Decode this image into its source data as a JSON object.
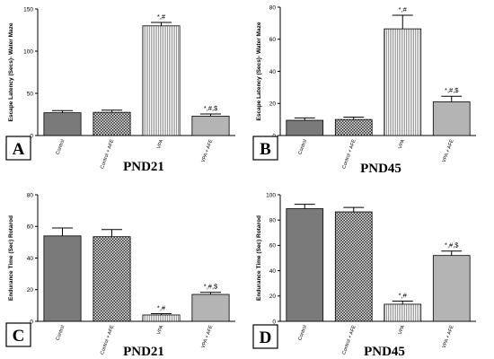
{
  "colors": {
    "control": "#7a7a7a",
    "control_afe": "checker-black-white",
    "vpa": "vertical-stripes-grey",
    "vpa_afe": "#b4b4b4"
  },
  "chart_data": [
    {
      "type": "bar",
      "panel_letter": "A",
      "title": "PND21",
      "xlabel": "",
      "ylabel": "Escape Latency (Secs)- Water Maze",
      "ylim": [
        0,
        150
      ],
      "yticks": [
        0,
        50,
        100,
        150
      ],
      "categories": [
        "Control",
        "Control + AFE",
        "VPA",
        "VPA + AFE"
      ],
      "values": [
        27,
        27.5,
        130,
        23
      ],
      "errors": [
        2.5,
        2.5,
        4,
        2.5
      ],
      "annotations": [
        "",
        "",
        "*,#",
        "*,#,$"
      ]
    },
    {
      "type": "bar",
      "panel_letter": "B",
      "title": "PND45",
      "xlabel": "",
      "ylabel": "Escape Latency (Secs)- Water Maze",
      "ylim": [
        0,
        80
      ],
      "yticks": [
        0,
        20,
        40,
        60,
        80
      ],
      "categories": [
        "Control",
        "Control + AFE",
        "VPA",
        "VPA + AFE"
      ],
      "values": [
        9.5,
        10,
        66.5,
        21
      ],
      "errors": [
        1.5,
        1.5,
        8.5,
        3.5
      ],
      "annotations": [
        "",
        "",
        "*,#",
        "*,#,$"
      ]
    },
    {
      "type": "bar",
      "panel_letter": "C",
      "title": "PND21",
      "xlabel": "",
      "ylabel": "Endurance Time (Sec) Rotarod",
      "ylim": [
        0,
        80
      ],
      "yticks": [
        0,
        20,
        40,
        60,
        80
      ],
      "categories": [
        "Control",
        "Control + AFE",
        "VPA",
        "VPA + AFE"
      ],
      "values": [
        54,
        53.5,
        4,
        17
      ],
      "errors": [
        5,
        4.5,
        0.8,
        1.3
      ],
      "annotations": [
        "",
        "",
        "*,#",
        "*,#,$"
      ]
    },
    {
      "type": "bar",
      "panel_letter": "D",
      "title": "PND45",
      "xlabel": "",
      "ylabel": "Endurance Time (Sec) Rotarod",
      "ylim": [
        0,
        100
      ],
      "yticks": [
        0,
        20,
        40,
        60,
        80,
        100
      ],
      "categories": [
        "Control",
        "Control + AFE",
        "VPA",
        "VPA + AFE"
      ],
      "values": [
        89,
        86.5,
        13.5,
        52
      ],
      "errors": [
        3.5,
        3.5,
        2.5,
        3.5
      ],
      "annotations": [
        "",
        "",
        "*,#",
        "*,#,$"
      ]
    }
  ]
}
